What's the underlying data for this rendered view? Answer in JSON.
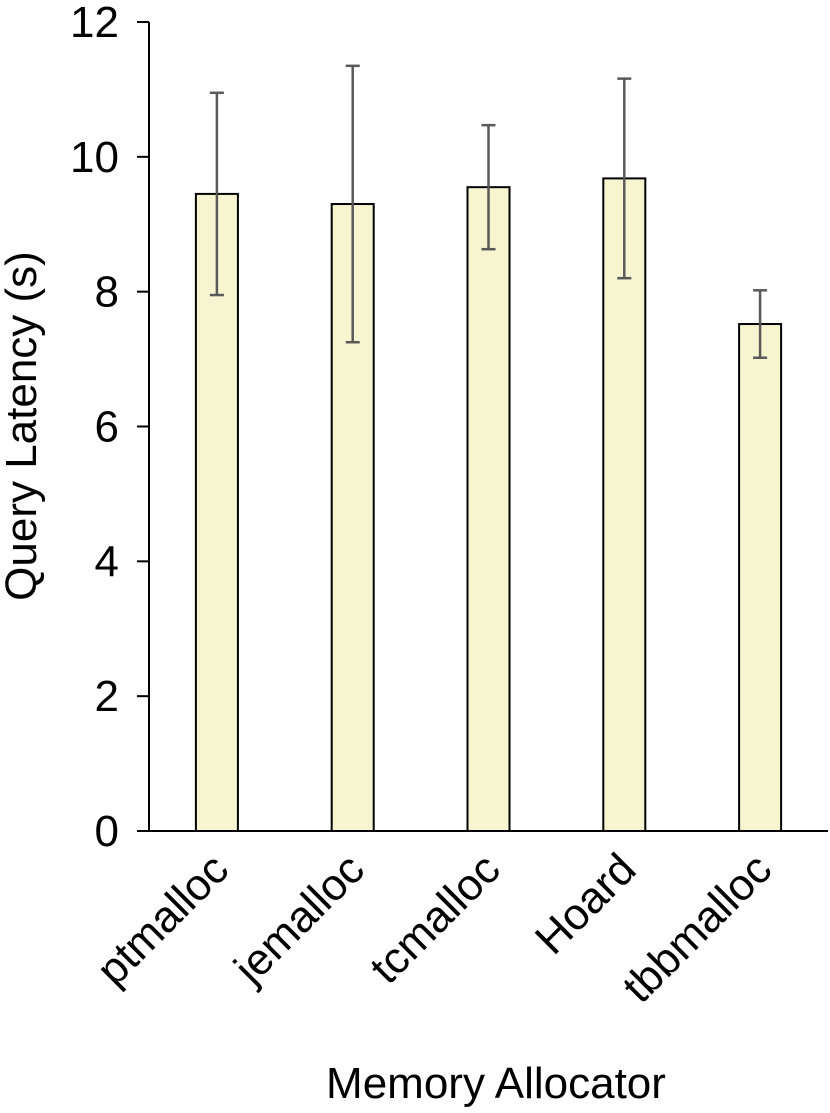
{
  "chart_data": {
    "type": "bar",
    "title": "",
    "xlabel": "Memory Allocator",
    "ylabel": "Query Latency (s)",
    "ylim": [
      0,
      12
    ],
    "yticks": [
      0,
      2,
      4,
      6,
      8,
      10,
      12
    ],
    "ytick_labels": [
      "0",
      "2",
      "4",
      "6",
      "8",
      "10",
      "12"
    ],
    "categories": [
      "ptmalloc",
      "jemalloc",
      "tcmalloc",
      "Hoard",
      "tbbmalloc"
    ],
    "values": [
      9.45,
      9.3,
      9.55,
      9.68,
      7.52
    ],
    "error_bars": [
      1.5,
      2.05,
      0.92,
      1.48,
      0.5
    ],
    "grid": false,
    "legend": "none",
    "colors": {
      "bar_fill": "#f7f5d0",
      "bar_stroke": "#000000",
      "error_bar": "#595959",
      "axis": "#000000"
    }
  }
}
